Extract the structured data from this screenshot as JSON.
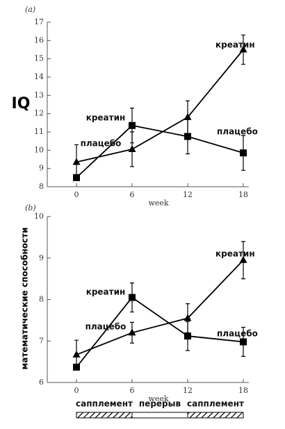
{
  "chart_data": [
    {
      "type": "line",
      "label": "(a)",
      "ylabel": "IQ",
      "xlabel": "week",
      "x": [
        0,
        6,
        12,
        18
      ],
      "xlim": [
        -3.15,
        18.6
      ],
      "ylim": [
        8,
        17
      ],
      "xticks": [
        0,
        6,
        12,
        18
      ],
      "yticks": [
        8,
        9,
        10,
        11,
        12,
        13,
        14,
        15,
        16,
        17
      ],
      "series": [
        {
          "name": "креатин",
          "color": "#000000",
          "marker": "triangle",
          "values": [
            9.35,
            10.05,
            11.8,
            15.5
          ],
          "errors": [
            0.95,
            0.95,
            0.9,
            0.8
          ]
        },
        {
          "name": "плацебо",
          "color": "#000000",
          "marker": "square",
          "values": [
            8.5,
            11.35,
            10.75,
            9.85
          ],
          "errors": [
            null,
            0.95,
            0.95,
            0.95
          ]
        }
      ],
      "annotations": [
        "креатин",
        "плацебо"
      ]
    },
    {
      "type": "line",
      "label": "(b)",
      "ylabel": "математические способности",
      "xlabel": "week",
      "x": [
        0,
        6,
        12,
        18
      ],
      "xlim": [
        -3.15,
        18.6
      ],
      "ylim": [
        6,
        10
      ],
      "xticks": [
        0,
        6,
        12,
        18
      ],
      "yticks": [
        6,
        7,
        8,
        9,
        10
      ],
      "series": [
        {
          "name": "креатин",
          "color": "#000000",
          "marker": "triangle",
          "values": [
            6.67,
            7.2,
            7.55,
            8.95
          ],
          "errors": [
            0.35,
            0.25,
            0.35,
            0.45
          ]
        },
        {
          "name": "плацебо",
          "color": "#000000",
          "marker": "square",
          "values": [
            6.37,
            8.05,
            7.12,
            6.98
          ],
          "errors": [
            null,
            0.35,
            0.35,
            0.35
          ]
        }
      ],
      "annotations": [
        "креатин",
        "плацебо"
      ],
      "phases": [
        "сапплемент",
        "перерыв",
        "сапплемент"
      ]
    }
  ]
}
